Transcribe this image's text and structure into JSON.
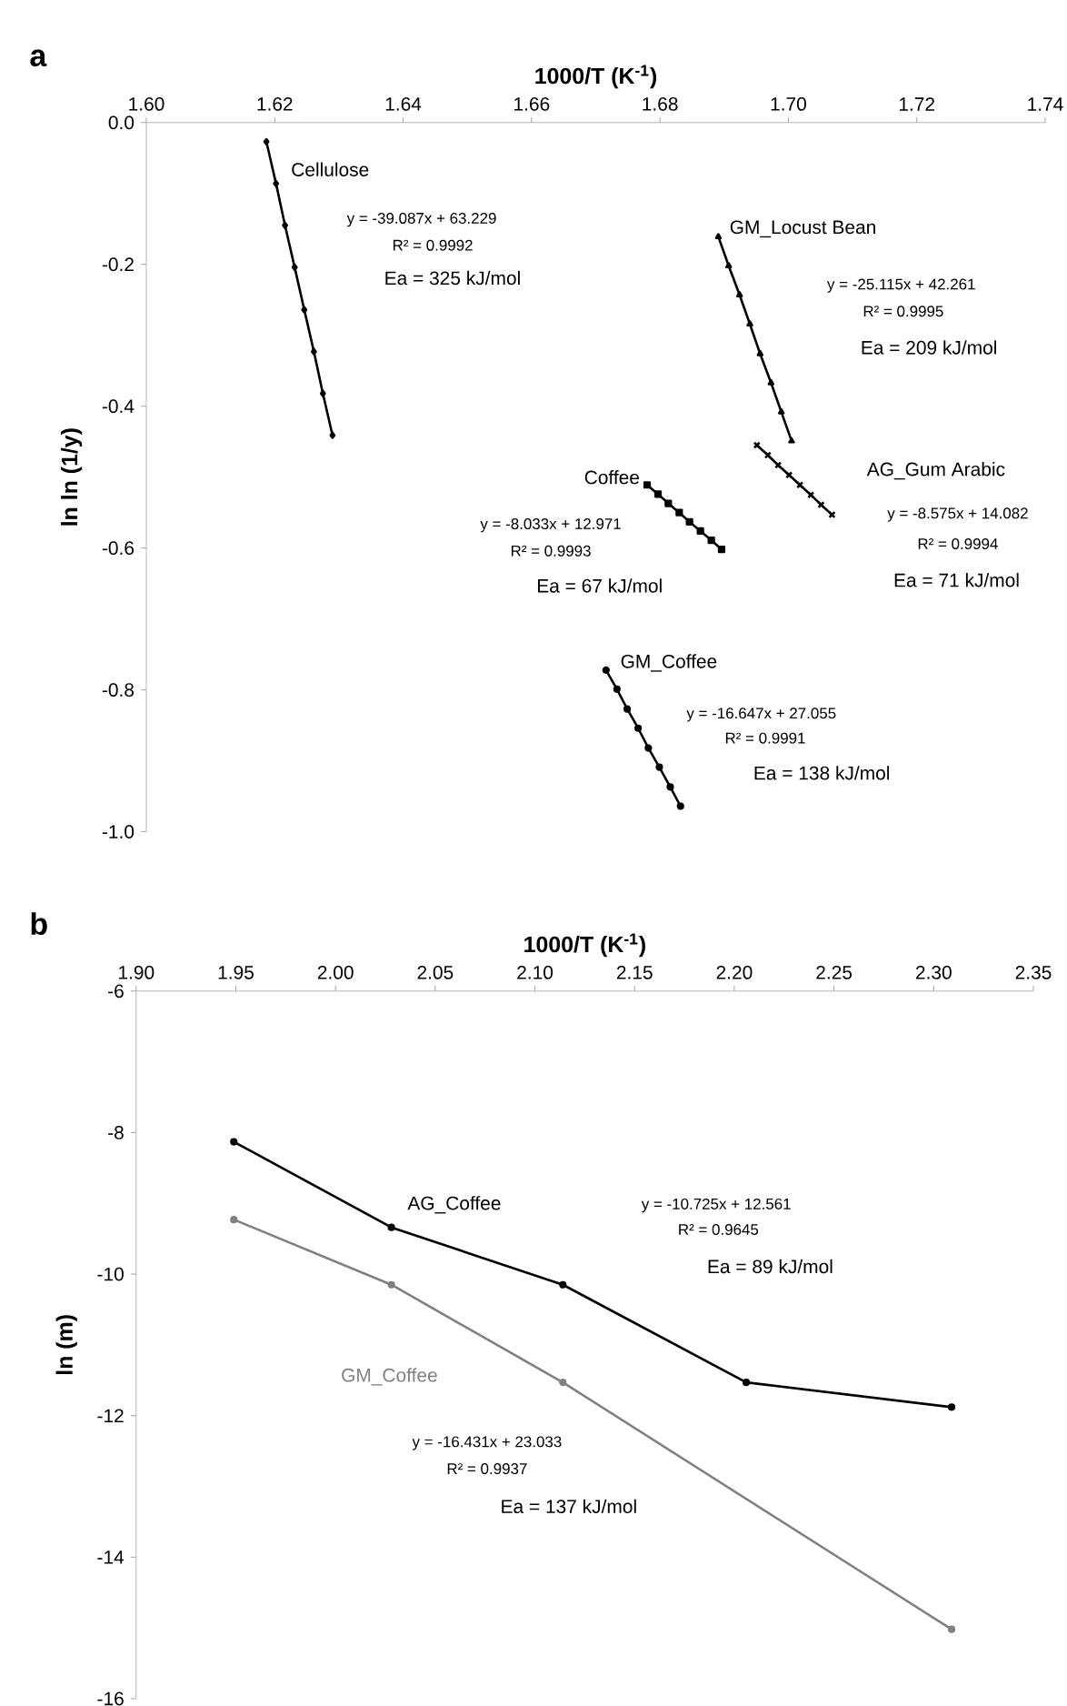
{
  "chart_data": [
    {
      "type": "line",
      "title": "a",
      "xlabel": "1000/T (K$^{-1}$)",
      "ylabel": "ln ln (1/y)",
      "xlim": [
        1.6,
        1.74
      ],
      "ylim": [
        -1.0,
        0.0
      ],
      "xticks": [
        {
          "value": 1.6,
          "label": "1.60"
        },
        {
          "value": 1.62,
          "label": "1.62"
        },
        {
          "value": 1.64,
          "label": "1.64"
        },
        {
          "value": 1.66,
          "label": "1.66"
        },
        {
          "value": 1.68,
          "label": "1.68"
        },
        {
          "value": 1.7,
          "label": "1.70"
        },
        {
          "value": 1.72,
          "label": "1.72"
        },
        {
          "value": 1.74,
          "label": "1.74"
        }
      ],
      "yticks": [
        {
          "value": 0,
          "label": "0.0"
        },
        {
          "value": -0.2,
          "label": "-0.2"
        },
        {
          "value": -0.4,
          "label": "-0.4"
        },
        {
          "value": -0.6,
          "label": "-0.6"
        },
        {
          "value": -0.8,
          "label": "-0.8"
        },
        {
          "value": -1.0,
          "label": "-1.0"
        }
      ],
      "series": [
        {
          "name": "Cellulose",
          "color": "#000000",
          "marker": "diamond",
          "x": [
            1.6187,
            1.6202,
            1.6216,
            1.6231,
            1.6246,
            1.6261,
            1.6275,
            1.629
          ],
          "values": [
            -0.027,
            -0.086,
            -0.145,
            -0.204,
            -0.264,
            -0.323,
            -0.382,
            -0.441
          ]
        },
        {
          "name": "GM_Locust Bean",
          "color": "#000000",
          "marker": "triangle",
          "x": [
            1.6891,
            1.6907,
            1.6924,
            1.694,
            1.6956,
            1.6973,
            1.6989,
            1.7005
          ],
          "values": [
            -0.161,
            -0.202,
            -0.243,
            -0.284,
            -0.326,
            -0.367,
            -0.408,
            -0.449
          ]
        },
        {
          "name": "AG_Gum Arabic",
          "color": "#000000",
          "marker": "cross",
          "x": [
            1.6951,
            1.6968,
            1.6984,
            1.7001,
            1.7018,
            1.7035,
            1.7051,
            1.7068
          ],
          "values": [
            -0.455,
            -0.469,
            -0.483,
            -0.497,
            -0.511,
            -0.525,
            -0.539,
            -0.553
          ]
        },
        {
          "name": "Coffee",
          "color": "#000000",
          "marker": "square",
          "x": [
            1.678,
            1.6797,
            1.6813,
            1.683,
            1.6846,
            1.6863,
            1.688,
            1.6896
          ],
          "values": [
            -0.511,
            -0.524,
            -0.537,
            -0.55,
            -0.563,
            -0.576,
            -0.589,
            -0.602
          ]
        },
        {
          "name": "GM_Coffee",
          "color": "#000000",
          "marker": "circle",
          "x": [
            1.6716,
            1.6733,
            1.6749,
            1.6766,
            1.6782,
            1.6799,
            1.6816,
            1.6832
          ],
          "values": [
            -0.772,
            -0.799,
            -0.827,
            -0.854,
            -0.882,
            -0.909,
            -0.937,
            -0.964
          ]
        }
      ],
      "annotations": [
        "y = -39.087x + 63.229",
        "R² = 0.9992",
        "Ea = 325 kJ/mol",
        "y = -25.115x + 42.261",
        "R² = 0.9995",
        "Ea = 209 kJ/mol",
        "y = -8.575x + 14.082",
        "R² = 0.9994",
        "Ea = 71 kJ/mol",
        "y = -8.033x + 12.971",
        "R² = 0.9993",
        "Ea = 67 kJ/mol",
        "y = -16.647x + 27.055",
        "R² = 0.9991",
        "Ea = 138 kJ/mol"
      ]
    },
    {
      "type": "line",
      "title": "b",
      "xlabel": "1000/T (K$^{-1}$)",
      "ylabel": "ln (m)",
      "marker": "circle",
      "xlim": [
        1.9,
        2.35
      ],
      "ylim": [
        -16,
        -6
      ],
      "xticks": [
        {
          "value": 1.9,
          "label": "1.90"
        },
        {
          "value": 1.95,
          "label": "1.95"
        },
        {
          "value": 2.0,
          "label": "2.00"
        },
        {
          "value": 2.05,
          "label": "2.05"
        },
        {
          "value": 2.1,
          "label": "2.10"
        },
        {
          "value": 2.15,
          "label": "2.15"
        },
        {
          "value": 2.2,
          "label": "2.20"
        },
        {
          "value": 2.25,
          "label": "2.25"
        },
        {
          "value": 2.3,
          "label": "2.30"
        },
        {
          "value": 2.35,
          "label": "2.35"
        }
      ],
      "yticks": [
        -6,
        -8,
        -10,
        -12,
        -14,
        -16
      ],
      "series": [
        {
          "name": "AG_Coffee",
          "color": "#000000",
          "x": [
            1.949,
            2.028,
            2.114,
            2.206,
            2.309
          ],
          "values": [
            -8.13,
            -9.34,
            -10.15,
            -11.53,
            -11.88
          ]
        },
        {
          "name": "GM_Coffee",
          "color": "#808080",
          "x": [
            1.949,
            2.028,
            2.114,
            2.309
          ],
          "values": [
            -9.23,
            -10.15,
            -11.53,
            -15.02
          ]
        }
      ],
      "annotations": [
        "y = -10.725x + 12.561",
        "R² = 0.9645",
        "Ea = 89 kJ/mol",
        "y = -16.431x + 23.033",
        "R² = 0.9937",
        "Ea = 137 kJ/mol"
      ]
    }
  ]
}
